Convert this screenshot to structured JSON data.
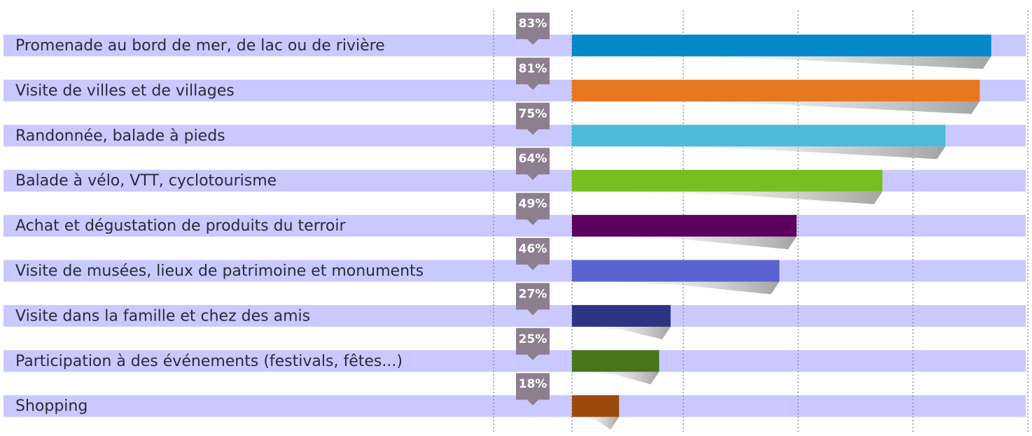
{
  "chart_data": {
    "type": "bar",
    "orientation": "horizontal",
    "categories": [
      "Promenade au bord de mer, de lac ou de rivière",
      "Visite de villes et de villages",
      "Randonnée, balade à pieds",
      "Balade à vélo, VTT, cyclotourisme",
      "Achat et dégustation de produits du terroir",
      "Visite de musées, lieux de patrimoine et monuments",
      "Visite dans la famille et chez des amis",
      "Participation à des événements (festivals, fêtes...)",
      "Shopping"
    ],
    "values": [
      83,
      81,
      75,
      64,
      49,
      46,
      27,
      25,
      18
    ],
    "value_labels": [
      "83%",
      "81%",
      "75%",
      "64%",
      "49%",
      "46%",
      "27%",
      "25%",
      "18%"
    ],
    "colors": [
      "#0088c8",
      "#e87722",
      "#4bbcd8",
      "#78be20",
      "#5c0060",
      "#5b63d0",
      "#2b3582",
      "#477517",
      "#9b4a0c"
    ],
    "xlim": [
      0,
      90
    ]
  }
}
